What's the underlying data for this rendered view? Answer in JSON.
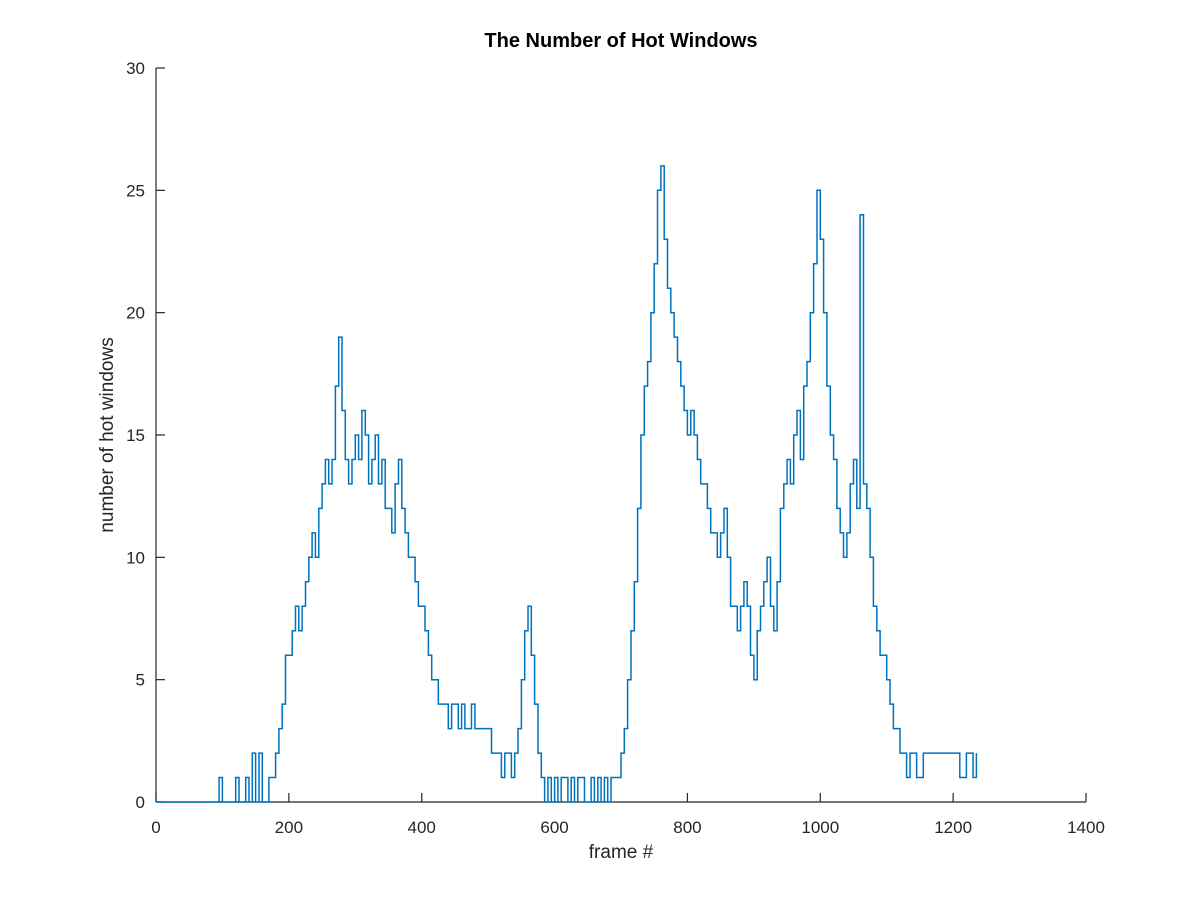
{
  "chart_data": {
    "type": "line",
    "title": "The Number of Hot Windows",
    "xlabel": "frame #",
    "ylabel": "number of hot windows",
    "xlim": [
      0,
      1400
    ],
    "ylim": [
      0,
      30
    ],
    "xticks": [
      0,
      200,
      400,
      600,
      800,
      1000,
      1200,
      1400
    ],
    "yticks": [
      0,
      5,
      10,
      15,
      20,
      25,
      30
    ],
    "xtick_labels": [
      "0",
      "200",
      "400",
      "600",
      "800",
      "1000",
      "1200",
      "1400"
    ],
    "ytick_labels": [
      "0",
      "5",
      "10",
      "15",
      "20",
      "25",
      "30"
    ],
    "grid": false,
    "line_color": "#0072BD",
    "series": [
      {
        "x_start": 0,
        "x_step": 5,
        "values": [
          0,
          0,
          0,
          0,
          0,
          0,
          0,
          0,
          0,
          0,
          0,
          0,
          0,
          0,
          0,
          0,
          0,
          0,
          0,
          1,
          0,
          0,
          0,
          0,
          1,
          0,
          0,
          1,
          0,
          2,
          0,
          2,
          0,
          0,
          1,
          1,
          2,
          3,
          4,
          6,
          6,
          7,
          8,
          7,
          8,
          9,
          10,
          11,
          10,
          12,
          13,
          14,
          13,
          14,
          17,
          19,
          16,
          14,
          13,
          14,
          15,
          14,
          16,
          15,
          13,
          14,
          15,
          13,
          14,
          12,
          12,
          11,
          13,
          14,
          12,
          11,
          10,
          10,
          9,
          8,
          8,
          7,
          6,
          5,
          5,
          4,
          4,
          4,
          3,
          4,
          4,
          3,
          4,
          3,
          3,
          4,
          3,
          3,
          3,
          3,
          3,
          2,
          2,
          2,
          1,
          2,
          2,
          1,
          2,
          3,
          5,
          7,
          8,
          6,
          4,
          2,
          1,
          0,
          1,
          0,
          1,
          0,
          1,
          1,
          0,
          1,
          0,
          1,
          1,
          0,
          0,
          1,
          0,
          1,
          0,
          1,
          0,
          1,
          1,
          1,
          2,
          3,
          5,
          7,
          9,
          12,
          15,
          17,
          18,
          20,
          22,
          25,
          26,
          23,
          21,
          20,
          19,
          18,
          17,
          16,
          15,
          16,
          15,
          14,
          13,
          13,
          12,
          11,
          11,
          10,
          11,
          12,
          10,
          8,
          8,
          7,
          8,
          9,
          8,
          6,
          5,
          7,
          8,
          9,
          10,
          8,
          7,
          9,
          12,
          13,
          14,
          13,
          15,
          16,
          14,
          17,
          18,
          20,
          22,
          25,
          23,
          20,
          17,
          15,
          14,
          12,
          11,
          10,
          11,
          13,
          14,
          12,
          24,
          13,
          12,
          10,
          8,
          7,
          6,
          6,
          5,
          4,
          3,
          3,
          2,
          2,
          1,
          2,
          2,
          1,
          1,
          2,
          2,
          2,
          2,
          2,
          2,
          2,
          2,
          2,
          2,
          2,
          1,
          1,
          2,
          2,
          1,
          2
        ]
      }
    ]
  }
}
